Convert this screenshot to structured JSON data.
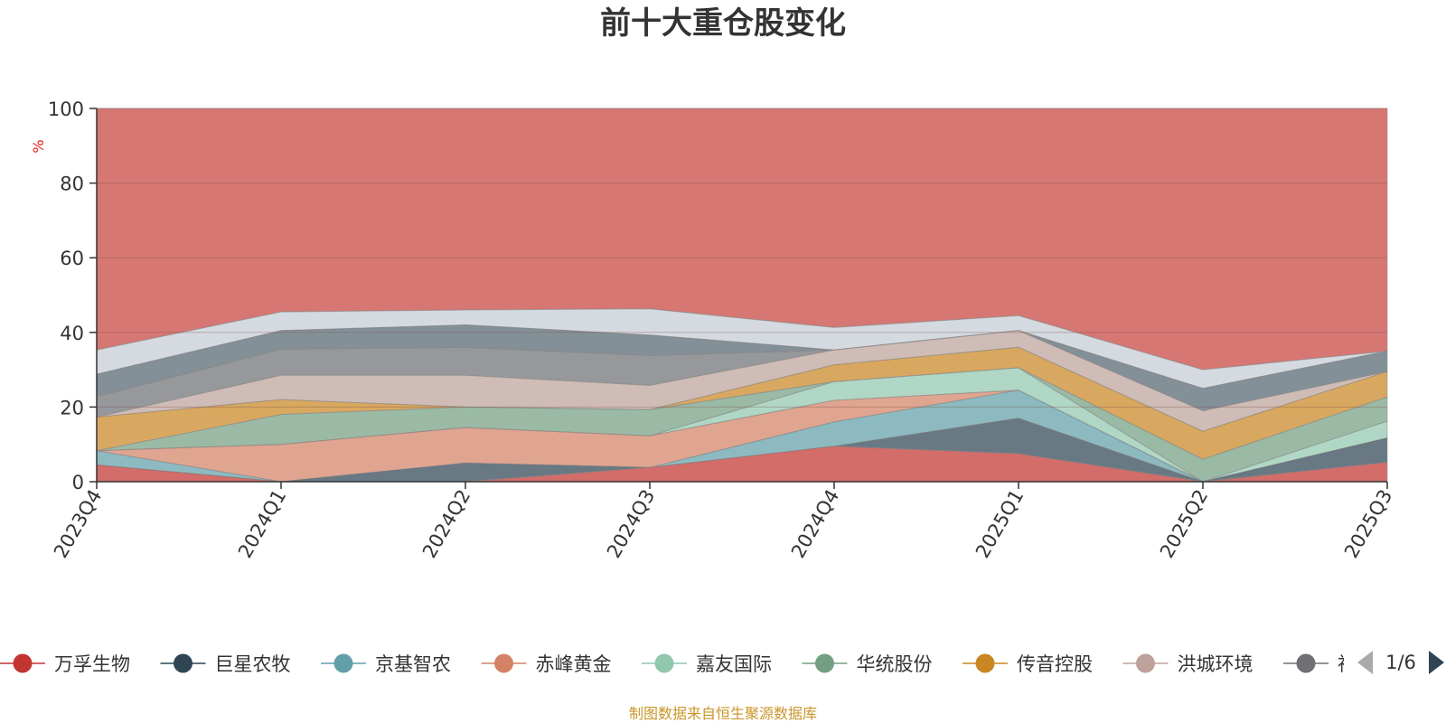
{
  "chart_data": {
    "type": "area",
    "title": "前十大重仓股变化",
    "unit": "%",
    "ylim": [
      0,
      100
    ],
    "yticks": [
      0,
      20,
      40,
      60,
      80,
      100
    ],
    "categories": [
      "2023Q4",
      "2024Q1",
      "2024Q2",
      "2024Q3",
      "2024Q4",
      "2025Q1",
      "2025Q2",
      "2025Q3"
    ],
    "grid": true,
    "legend_position": "bottom",
    "legend": [
      "万孚生物",
      "巨星农牧",
      "京基智农",
      "赤峰黄金",
      "嘉友国际",
      "华统股份",
      "传音控股",
      "洪城环境",
      "神"
    ],
    "legend_visible_text": "神",
    "page_indicator": "1/6",
    "series": [
      {
        "name": "万孚生物",
        "color": "#c23531",
        "values": [
          4.5,
          0,
          0,
          3.8,
          9.5,
          7.5,
          0,
          5.2
        ]
      },
      {
        "name": "巨星农牧",
        "color": "#2f4554",
        "values": [
          0,
          0,
          5.0,
          0,
          0,
          9.5,
          0,
          6.5
        ]
      },
      {
        "name": "京基智农",
        "color": "#61a0a8",
        "values": [
          3.8,
          0,
          0,
          0,
          6.5,
          7.5,
          0,
          0
        ]
      },
      {
        "name": "赤峰黄金",
        "color": "#d48265",
        "values": [
          0,
          10.0,
          9.5,
          8.5,
          5.8,
          0,
          0,
          0
        ]
      },
      {
        "name": "嘉友国际",
        "color": "#91c7ae",
        "values": [
          0,
          0,
          0,
          0,
          5.0,
          6.0,
          0,
          4.5
        ]
      },
      {
        "name": "华统股份",
        "color": "#749f83",
        "values": [
          0,
          8.0,
          5.5,
          7.0,
          0,
          0,
          6.0,
          6.5
        ]
      },
      {
        "name": "传音控股",
        "color": "#ca8622",
        "values": [
          9.0,
          4.0,
          0,
          0,
          4.5,
          5.5,
          7.5,
          6.8
        ]
      },
      {
        "name": "洪城环境",
        "color": "#bda29a",
        "values": [
          0,
          6.5,
          8.5,
          6.5,
          4.0,
          4.5,
          5.5,
          0
        ]
      },
      {
        "name": "神",
        "color": "#6e7074",
        "values": [
          5.5,
          7.0,
          7.5,
          8.0,
          0,
          0,
          0,
          0
        ]
      }
    ],
    "extra_series_colors": [
      "#546570",
      "#c4ccd3"
    ],
    "extra_series_values": [
      [
        6.0,
        5.0,
        6.0,
        5.5,
        0,
        0,
        6.0,
        5.5
      ],
      [
        6.5,
        5.0,
        4.0,
        7.0,
        6.0,
        4.0,
        5.0,
        0
      ]
    ]
  },
  "footer": {
    "source": "制图数据来自恒生聚源数据库"
  }
}
